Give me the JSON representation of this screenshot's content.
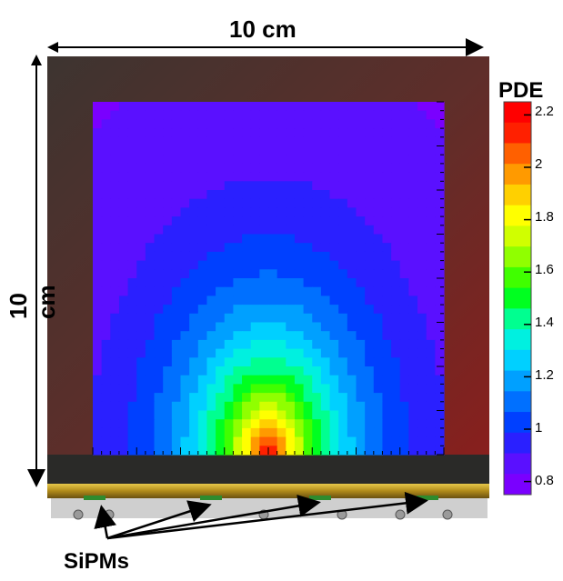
{
  "labels": {
    "width_dimension": "10 cm",
    "height_dimension": "10 cm",
    "colorbar_title": "PDE",
    "sensor_label": "SiPMs"
  },
  "colorbar": {
    "ticks": [
      "2.2",
      "2",
      "1.8",
      "1.6",
      "1.4",
      "1.2",
      "1",
      "0.8"
    ],
    "range": [
      0.75,
      2.25
    ],
    "colors": [
      "#7a00ff",
      "#5a10ff",
      "#2a20ff",
      "#0040ff",
      "#0070ff",
      "#00a0ff",
      "#00d0ff",
      "#00f0e0",
      "#00ff90",
      "#00ff20",
      "#40ff00",
      "#90ff00",
      "#d0ff00",
      "#ffff00",
      "#ffd000",
      "#ff9a00",
      "#ff6000",
      "#ff2000",
      "#ff0000"
    ]
  },
  "heatmap": {
    "description_colors": {
      "frame": "#5a2a26",
      "frame_edge": "#8a2420",
      "bar": "#c9a42a",
      "bar_dark": "#7a6a1a"
    }
  }
}
